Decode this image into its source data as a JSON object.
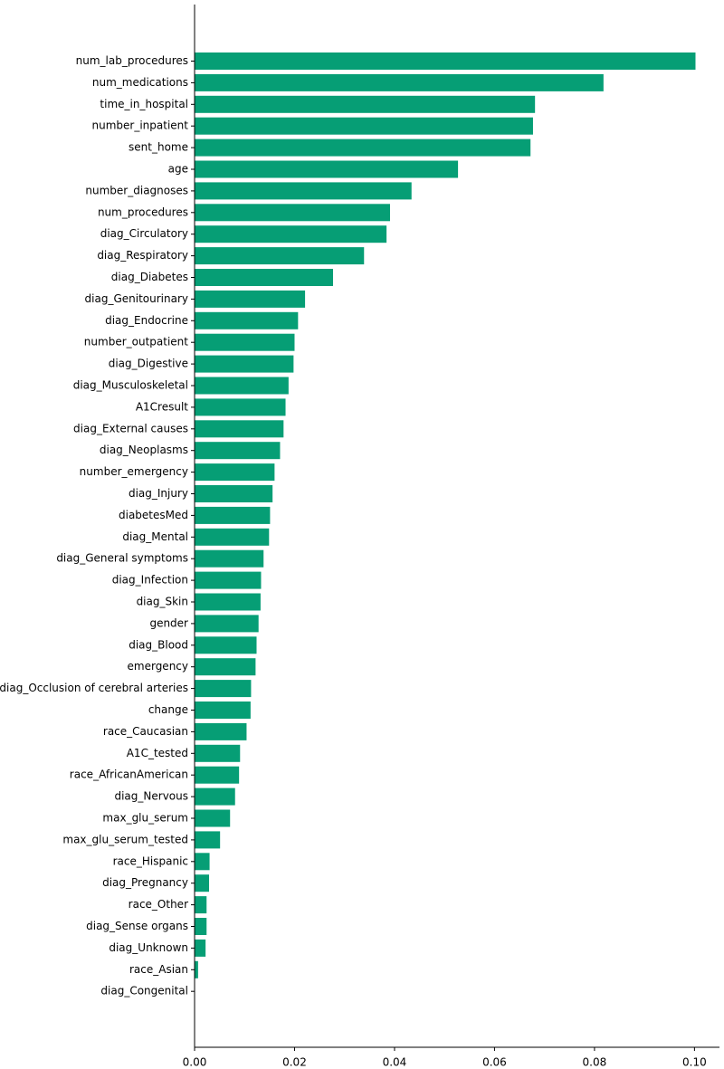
{
  "chart_data": {
    "type": "bar",
    "orientation": "horizontal",
    "title": "",
    "xlabel": "",
    "ylabel": "",
    "xlim": [
      0,
      0.105
    ],
    "xticks": [
      0.0,
      0.02,
      0.04,
      0.06,
      0.08,
      0.1
    ],
    "xtick_labels": [
      "0.00",
      "0.02",
      "0.04",
      "0.06",
      "0.08",
      "0.10"
    ],
    "grid": false,
    "bar_color": "#069e75",
    "categories": [
      "num_lab_procedures",
      "num_medications",
      "time_in_hospital",
      "number_inpatient",
      "sent_home",
      "age",
      "number_diagnoses",
      "num_procedures",
      "diag_Circulatory",
      "diag_Respiratory",
      "diag_Diabetes",
      "diag_Genitourinary",
      "diag_Endocrine",
      "number_outpatient",
      "diag_Digestive",
      "diag_Musculoskeletal",
      "A1Cresult",
      "diag_External causes",
      "diag_Neoplasms",
      "number_emergency",
      "diag_Injury",
      "diabetesMed",
      "diag_Mental",
      "diag_General symptoms",
      "diag_Infection",
      "diag_Skin",
      "gender",
      "diag_Blood",
      "emergency",
      "diag_Occlusion of cerebral arteries",
      "change",
      "race_Caucasian",
      "A1C_tested",
      "race_AfricanAmerican",
      "diag_Nervous",
      "max_glu_serum",
      "max_glu_serum_tested",
      "race_Hispanic",
      "diag_Pregnancy",
      "race_Other",
      "diag_Sense organs",
      "diag_Unknown",
      "race_Asian",
      "diag_Congenital"
    ],
    "values": [
      0.1002,
      0.0818,
      0.0681,
      0.0677,
      0.0672,
      0.0527,
      0.0434,
      0.0391,
      0.0384,
      0.0339,
      0.0277,
      0.0221,
      0.0207,
      0.02,
      0.0198,
      0.0188,
      0.0182,
      0.0178,
      0.0171,
      0.016,
      0.0156,
      0.0151,
      0.0149,
      0.0138,
      0.0133,
      0.0132,
      0.0128,
      0.0124,
      0.0122,
      0.0113,
      0.0112,
      0.0104,
      0.0091,
      0.0089,
      0.0081,
      0.0071,
      0.0051,
      0.003,
      0.0029,
      0.0024,
      0.0024,
      0.0022,
      0.0007,
      0.0
    ]
  }
}
